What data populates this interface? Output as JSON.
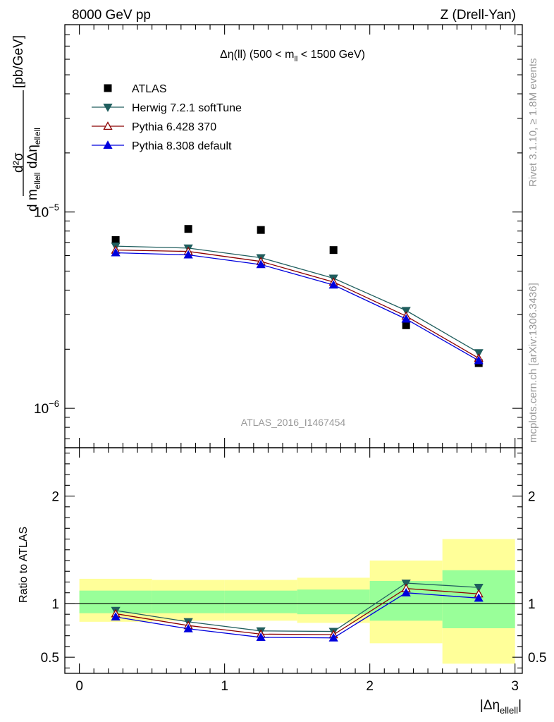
{
  "header": {
    "left": "8000 GeV pp",
    "right": "Z (Drell-Yan)"
  },
  "plot_title": {
    "main": "Δη(ll) (500 < m",
    "sub": "ll",
    "tail": " < 1500 GeV)"
  },
  "side_labels": {
    "rivet": "Rivet 3.1.10, ≥ 1.8M events",
    "mcplots": "mcplots.cern.ch [arXiv:1306.3436]"
  },
  "analysis_id": "ATLAS_2016_I1467454",
  "ylabel_main": {
    "num": "d²σ",
    "den_a": "d m",
    "den_sub1": "ellell",
    "den_b": " dΔη",
    "den_sub2": "ellell",
    "unit": "[pb/GeV]"
  },
  "ylabel_ratio": "Ratio to ATLAS",
  "xlabel": {
    "main": "|Δη",
    "sub": "ellell",
    "tail": "|"
  },
  "colors": {
    "atlas": "#000000",
    "herwig": "#205e5e",
    "pythia6": "#8b0000",
    "pythia8": "#0000dd",
    "band_yellow": "#ffff99",
    "band_green": "#99ff99"
  },
  "chart_data": [
    {
      "type": "scatter",
      "yscale": "log",
      "xlim": [
        -0.1,
        3.05
      ],
      "ylim": [
        6.3e-07,
        9e-05
      ],
      "x_ticks": [
        0,
        1,
        2,
        3
      ],
      "y_major_ticks": [
        {
          "value": 1e-06,
          "base": "10",
          "exp": "−6"
        },
        {
          "value": 1e-05,
          "base": "10",
          "exp": "−5"
        }
      ],
      "legend_position": "top-left",
      "x": [
        0.25,
        0.75,
        1.25,
        1.75,
        2.25,
        2.75
      ],
      "series": [
        {
          "name": "ATLAS",
          "marker": "square",
          "values": [
            7.2e-06,
            8.2e-06,
            8.1e-06,
            6.4e-06,
            2.65e-06,
            1.7e-06
          ]
        },
        {
          "name": "Herwig 7.2.1 softTune",
          "marker": "triangle-down",
          "values": [
            6.7e-06,
            6.55e-06,
            5.85e-06,
            4.6e-06,
            3.15e-06,
            1.92e-06
          ]
        },
        {
          "name": "Pythia 6.428 370",
          "marker": "triangle-up-open",
          "values": [
            6.4e-06,
            6.3e-06,
            5.6e-06,
            4.4e-06,
            2.95e-06,
            1.8e-06
          ]
        },
        {
          "name": "Pythia 8.308 default",
          "marker": "triangle-up",
          "values": [
            6.2e-06,
            6.05e-06,
            5.4e-06,
            4.25e-06,
            2.85e-06,
            1.75e-06
          ]
        }
      ]
    },
    {
      "type": "line",
      "xlim": [
        -0.1,
        3.05
      ],
      "ylim": [
        0.35,
        2.45
      ],
      "x_ticks": [
        0,
        1,
        2,
        3
      ],
      "y_ticks": [
        {
          "value": 0.5,
          "label": "0.5"
        },
        {
          "value": 1,
          "label": "1"
        },
        {
          "value": 2,
          "label": "2"
        }
      ],
      "reference_line": 1,
      "bands": [
        {
          "x0": 0.0,
          "x1": 0.5,
          "yellow": [
            0.83,
            1.23
          ],
          "green": [
            0.91,
            1.12
          ]
        },
        {
          "x0": 0.5,
          "x1": 1.0,
          "yellow": [
            0.84,
            1.22
          ],
          "green": [
            0.91,
            1.12
          ]
        },
        {
          "x0": 1.0,
          "x1": 1.5,
          "yellow": [
            0.84,
            1.22
          ],
          "green": [
            0.91,
            1.12
          ]
        },
        {
          "x0": 1.5,
          "x1": 2.0,
          "yellow": [
            0.82,
            1.24
          ],
          "green": [
            0.9,
            1.13
          ]
        },
        {
          "x0": 2.0,
          "x1": 2.5,
          "yellow": [
            0.63,
            1.4
          ],
          "green": [
            0.84,
            1.21
          ]
        },
        {
          "x0": 2.5,
          "x1": 3.0,
          "yellow": [
            0.44,
            1.6
          ],
          "green": [
            0.77,
            1.31
          ]
        }
      ],
      "x": [
        0.25,
        0.75,
        1.25,
        1.75,
        2.25,
        2.75
      ],
      "series": [
        {
          "name": "Herwig 7.2.1 softTune",
          "marker": "triangle-down",
          "values": [
            0.935,
            0.83,
            0.745,
            0.74,
            1.19,
            1.15
          ]
        },
        {
          "name": "Pythia 6.428 370",
          "marker": "triangle-up-open",
          "values": [
            0.905,
            0.795,
            0.715,
            0.71,
            1.14,
            1.09
          ]
        },
        {
          "name": "Pythia 8.308 default",
          "marker": "triangle-up",
          "values": [
            0.875,
            0.765,
            0.685,
            0.68,
            1.1,
            1.05
          ]
        }
      ]
    }
  ]
}
